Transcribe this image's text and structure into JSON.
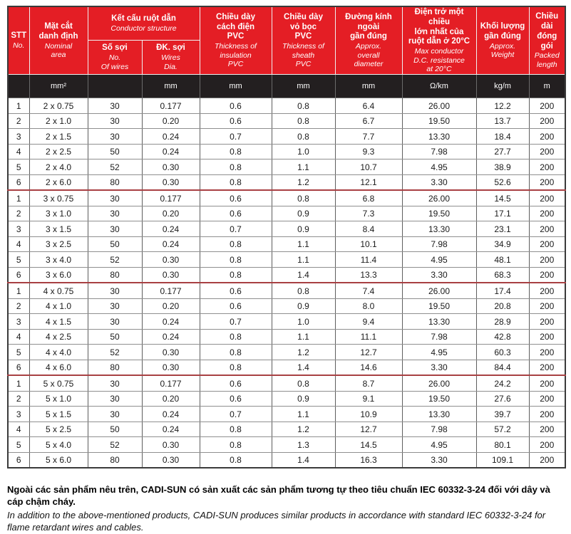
{
  "colors": {
    "header_red": "#e41e25",
    "units_black": "#231f20",
    "group_separator": "#a84043",
    "grid_line": "#6b6b6b"
  },
  "table": {
    "header": {
      "stt": {
        "vi": "STT",
        "en": "No."
      },
      "nominal_area": {
        "vi": "Mặt cắt\ndanh định",
        "en": "Nominal\narea"
      },
      "conductor_structure": {
        "vi": "Kết cấu ruột dẫn",
        "en": "Conductor structure"
      },
      "no_of_wires": {
        "vi": "Số sợi",
        "en": "No.\nOf wires"
      },
      "wires_dia": {
        "vi": "ĐK. sợi",
        "en": "Wires\nDia."
      },
      "insulation": {
        "vi": "Chiều dày\ncách điện\nPVC",
        "en": "Thickness of\ninsulation\nPVC"
      },
      "sheath": {
        "vi": "Chiều dày\nvỏ bọc\nPVC",
        "en": "Thickness of\nsheath\nPVC"
      },
      "diameter": {
        "vi": "Đường kính\nngoài\ngần đúng",
        "en": "Approx.\noverall\ndiameter"
      },
      "resistance": {
        "vi": "Điện trở một chiều\nlớn nhất của\nruột dẫn ở 20°C",
        "en": "Max conductor\nD.C. resistance\nat 20°C"
      },
      "weight": {
        "vi": "Khối lượng\ngần đúng",
        "en": "Approx.\nWeight"
      },
      "packed_length": {
        "vi": "Chiều\ndài\nđóng\ngói",
        "en": "Packed\nlength"
      }
    },
    "units": [
      "",
      "mm²",
      "",
      "mm",
      "mm",
      "mm",
      "mm",
      "Ω/km",
      "kg/m",
      "m"
    ],
    "groups": [
      {
        "rows": [
          [
            "1",
            "2 x 0.75",
            "30",
            "0.177",
            "0.6",
            "0.8",
            "6.4",
            "26.00",
            "12.2",
            "200"
          ],
          [
            "2",
            "2 x 1.0",
            "30",
            "0.20",
            "0.6",
            "0.8",
            "6.7",
            "19.50",
            "13.7",
            "200"
          ],
          [
            "3",
            "2 x 1.5",
            "30",
            "0.24",
            "0.7",
            "0.8",
            "7.7",
            "13.30",
            "18.4",
            "200"
          ],
          [
            "4",
            "2 x 2.5",
            "50",
            "0.24",
            "0.8",
            "1.0",
            "9.3",
            "7.98",
            "27.7",
            "200"
          ],
          [
            "5",
            "2 x 4.0",
            "52",
            "0.30",
            "0.8",
            "1.1",
            "10.7",
            "4.95",
            "38.9",
            "200"
          ],
          [
            "6",
            "2 x 6.0",
            "80",
            "0.30",
            "0.8",
            "1.2",
            "12.1",
            "3.30",
            "52.6",
            "200"
          ]
        ]
      },
      {
        "rows": [
          [
            "1",
            "3 x 0.75",
            "30",
            "0.177",
            "0.6",
            "0.8",
            "6.8",
            "26.00",
            "14.5",
            "200"
          ],
          [
            "2",
            "3 x 1.0",
            "30",
            "0.20",
            "0.6",
            "0.9",
            "7.3",
            "19.50",
            "17.1",
            "200"
          ],
          [
            "3",
            "3 x 1.5",
            "30",
            "0.24",
            "0.7",
            "0.9",
            "8.4",
            "13.30",
            "23.1",
            "200"
          ],
          [
            "4",
            "3 x 2.5",
            "50",
            "0.24",
            "0.8",
            "1.1",
            "10.1",
            "7.98",
            "34.9",
            "200"
          ],
          [
            "5",
            "3 x 4.0",
            "52",
            "0.30",
            "0.8",
            "1.1",
            "11.4",
            "4.95",
            "48.1",
            "200"
          ],
          [
            "6",
            "3 x 6.0",
            "80",
            "0.30",
            "0.8",
            "1.4",
            "13.3",
            "3.30",
            "68.3",
            "200"
          ]
        ]
      },
      {
        "rows": [
          [
            "1",
            "4 x 0.75",
            "30",
            "0.177",
            "0.6",
            "0.8",
            "7.4",
            "26.00",
            "17.4",
            "200"
          ],
          [
            "2",
            "4 x 1.0",
            "30",
            "0.20",
            "0.6",
            "0.9",
            "8.0",
            "19.50",
            "20.8",
            "200"
          ],
          [
            "3",
            "4 x 1.5",
            "30",
            "0.24",
            "0.7",
            "1.0",
            "9.4",
            "13.30",
            "28.9",
            "200"
          ],
          [
            "4",
            "4 x 2.5",
            "50",
            "0.24",
            "0.8",
            "1.1",
            "11.1",
            "7.98",
            "42.8",
            "200"
          ],
          [
            "5",
            "4 x 4.0",
            "52",
            "0.30",
            "0.8",
            "1.2",
            "12.7",
            "4.95",
            "60.3",
            "200"
          ],
          [
            "6",
            "4 x 6.0",
            "80",
            "0.30",
            "0.8",
            "1.4",
            "14.6",
            "3.30",
            "84.4",
            "200"
          ]
        ]
      },
      {
        "rows": [
          [
            "1",
            "5 x 0.75",
            "30",
            "0.177",
            "0.6",
            "0.8",
            "8.7",
            "26.00",
            "24.2",
            "200"
          ],
          [
            "2",
            "5 x 1.0",
            "30",
            "0.20",
            "0.6",
            "0.9",
            "9.1",
            "19.50",
            "27.6",
            "200"
          ],
          [
            "3",
            "5 x 1.5",
            "30",
            "0.24",
            "0.7",
            "1.1",
            "10.9",
            "13.30",
            "39.7",
            "200"
          ],
          [
            "4",
            "5 x 2.5",
            "50",
            "0.24",
            "0.8",
            "1.2",
            "12.7",
            "7.98",
            "57.2",
            "200"
          ],
          [
            "5",
            "5 x 4.0",
            "52",
            "0.30",
            "0.8",
            "1.3",
            "14.5",
            "4.95",
            "80.1",
            "200"
          ],
          [
            "6",
            "5 x 6.0",
            "80",
            "0.30",
            "0.8",
            "1.4",
            "16.3",
            "3.30",
            "109.1",
            "200"
          ]
        ]
      }
    ]
  },
  "footnote": {
    "vi": "Ngoài các sản phẩm nêu trên, CADI-SUN có sản xuất các sản phẩm tương tự theo tiêu chuẩn IEC 60332-3-24 đối với dây và cáp chậm cháy.",
    "en": "In addition to the above-mentioned products, CADI-SUN produces similar products in accordance with standard IEC 60332-3-24 for flame retardant wires and cables."
  }
}
